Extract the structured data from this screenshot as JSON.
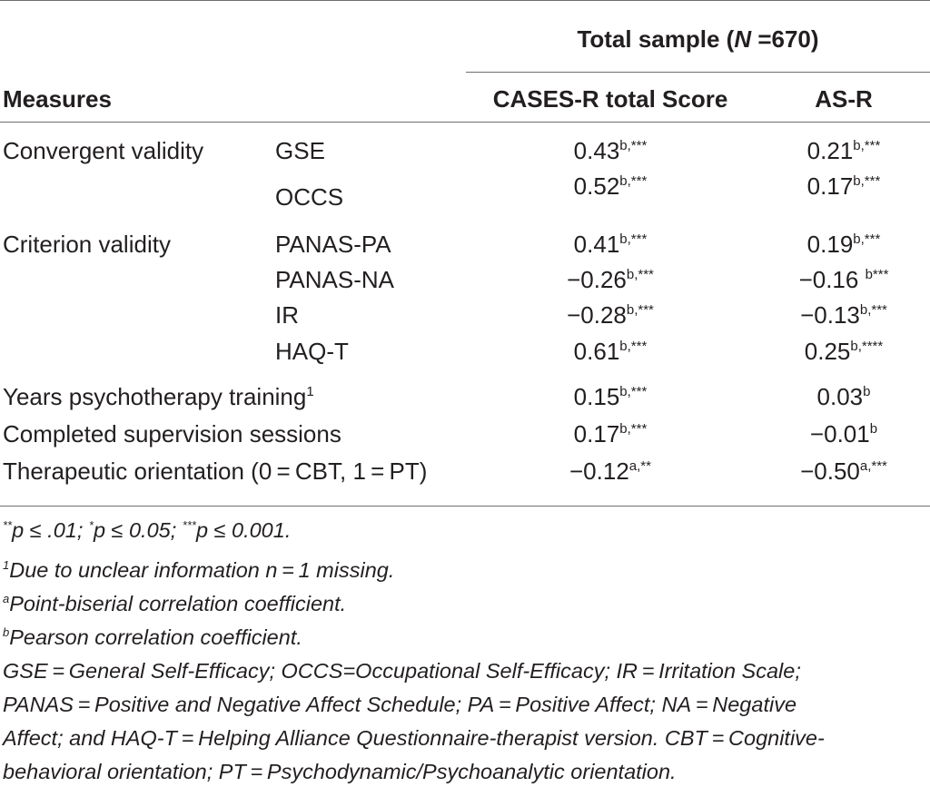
{
  "header": {
    "group_label_prefix": "Total sample (",
    "group_label_n": "N",
    "group_label_suffix": " =670)",
    "measures_label": "Measures",
    "col1_label": "CASES-R total Score",
    "col2_label": "AS-R"
  },
  "rows": [
    {
      "category": "Convergent validity",
      "measure": "GSE",
      "v1": "0.43",
      "s1": "b,***",
      "v2": "0.21",
      "s2": "b,***"
    },
    {
      "category": "",
      "measure": "OCCS",
      "v1": "0.52",
      "s1": "b,***",
      "v2": "0.17",
      "s2": "b,***"
    },
    {
      "category": "Criterion validity",
      "measure": "PANAS-PA",
      "v1": "0.41",
      "s1": "b,***",
      "v2": "0.19",
      "s2": "b,***"
    },
    {
      "category": "",
      "measure": "PANAS-NA",
      "v1": "−0.26",
      "s1": "b,***",
      "v2": "−0.16 ",
      "s2": "b***"
    },
    {
      "category": "",
      "measure": "IR",
      "v1": "−0.28",
      "s1": "b,***",
      "v2": "−0.13",
      "s2": "b,***"
    },
    {
      "category": "",
      "measure": "HAQ-T",
      "v1": "0.61",
      "s1": "b,***",
      "v2": "0.25",
      "s2": "b,****"
    },
    {
      "label": "Years psychotherapy training",
      "label_sup": "1",
      "v1": "0.15",
      "s1": "b,***",
      "v2": "0.03",
      "s2": "b"
    },
    {
      "label": "Completed supervision sessions",
      "v1": "0.17",
      "s1": "b,***",
      "v2": "−0.01",
      "s2": "b"
    },
    {
      "label": "Therapeutic orientation (0 = CBT, 1 = PT)",
      "v1": "−0.12",
      "s1": "a,**",
      "v2": "−0.50",
      "s2": "a,***"
    }
  ],
  "notes": {
    "sig": {
      "m1": "**",
      "p1": "p",
      "t1": " ≤ .01; ",
      "m2": "*",
      "p2": "p",
      "t2": " ≤ 0.05; ",
      "m3": "***",
      "p3": "p",
      "t3": " ≤ 0.001."
    },
    "footnote1": {
      "mark": "1",
      "text": "Due to unclear information n = 1 missing."
    },
    "footnote_a": {
      "mark": "a",
      "text": "Point-biserial correlation coefficient."
    },
    "footnote_b": {
      "mark": "b",
      "text": "Pearson correlation coefficient."
    },
    "abbrev_lines": [
      "GSE = General Self-Efficacy; OCCS=Occupational Self-Efficacy; IR = Irritation Scale;",
      "PANAS = Positive and Negative Affect Schedule; PA = Positive Affect; NA = Negative",
      "Affect; and HAQ-T = Helping Alliance Questionnaire-therapist version. CBT = Cognitive-",
      "behavioral orientation; PT = Psychodynamic/Psychoanalytic orientation."
    ]
  }
}
